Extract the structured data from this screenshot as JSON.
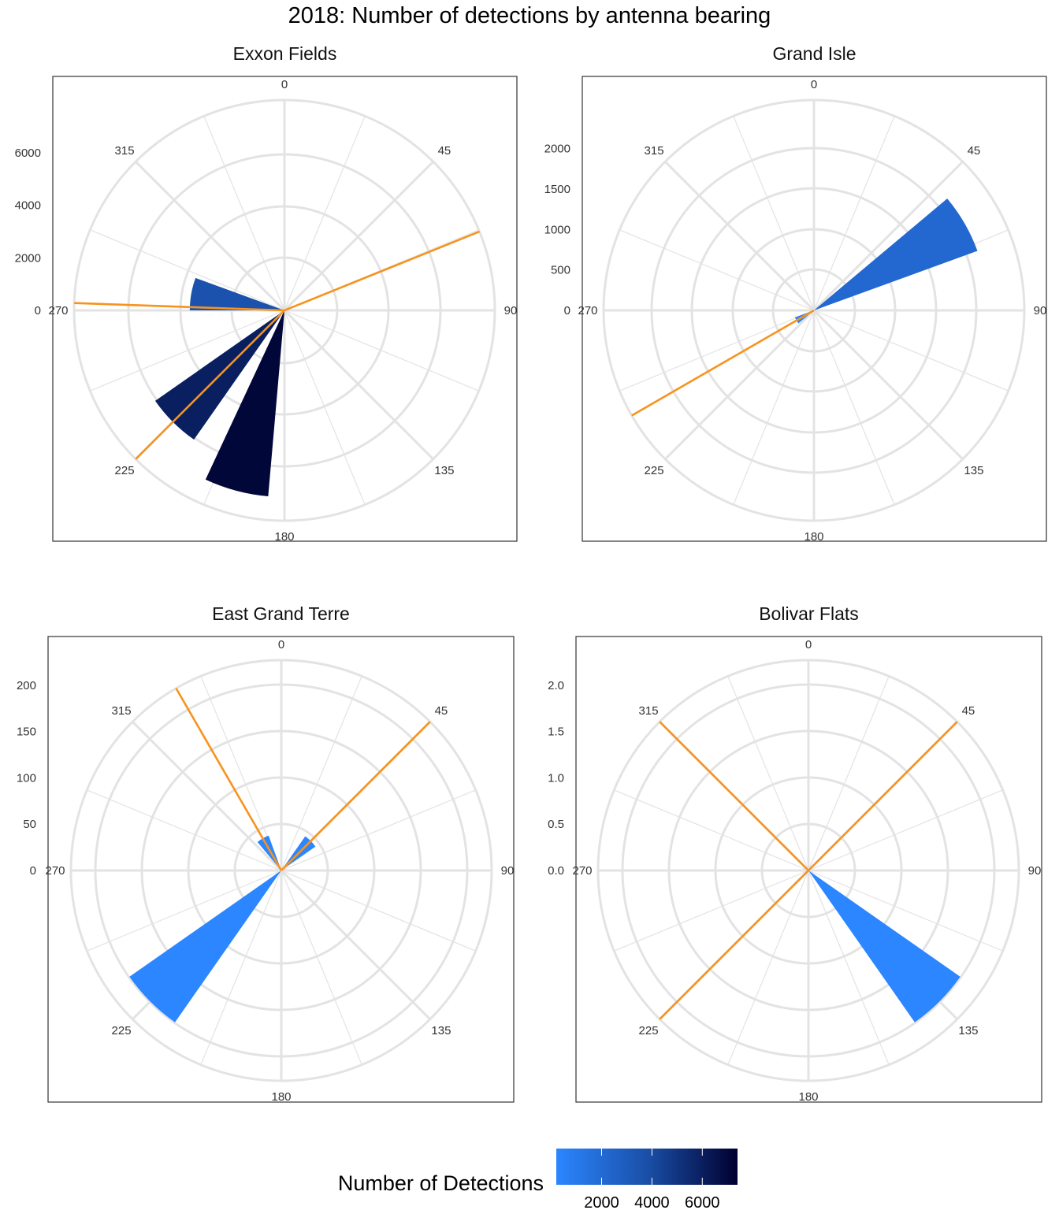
{
  "title": "2018: Number of detections by antenna bearing",
  "colors": {
    "bearing_line": "#f7931e",
    "grid": "#e3e3e3",
    "low": "#2b86ff",
    "mid": "#1a4fa8",
    "high": "#000030"
  },
  "legend": {
    "title": "Number of Detections",
    "min": 200,
    "max": 7400,
    "ticks": [
      "2000",
      "4000",
      "6000"
    ],
    "tick_values": [
      2000,
      4000,
      6000
    ]
  },
  "chart_data": [
    {
      "type": "polar-bar",
      "title": "Exxon Fields",
      "radial_ticks": [
        "0",
        "2000",
        "4000",
        "6000"
      ],
      "radial_tick_values": [
        0,
        2000,
        4000,
        6000
      ],
      "radial_max": 8000,
      "angle_ticks": [
        "0",
        "45",
        "90",
        "135",
        "180",
        "225",
        "270",
        "315"
      ],
      "bars": [
        {
          "bearing": 280,
          "value": 3600
        },
        {
          "bearing": 225,
          "value": 6000
        },
        {
          "bearing": 195,
          "value": 7100
        }
      ],
      "bearing_lines": [
        68,
        272,
        225
      ]
    },
    {
      "type": "polar-bar",
      "title": "Grand Isle",
      "radial_ticks": [
        "0",
        "500",
        "1000",
        "1500",
        "2000"
      ],
      "radial_tick_values": [
        0,
        500,
        1000,
        1500,
        2000
      ],
      "radial_max": 2600,
      "angle_ticks": [
        "0",
        "45",
        "90",
        "135",
        "180",
        "225",
        "270",
        "315"
      ],
      "bars": [
        {
          "bearing": 60,
          "value": 2150
        },
        {
          "bearing": 240,
          "value": 250
        }
      ],
      "bearing_lines": [
        240
      ]
    },
    {
      "type": "polar-bar",
      "title": "East Grand Terre",
      "radial_ticks": [
        "0",
        "50",
        "100",
        "150",
        "200"
      ],
      "radial_tick_values": [
        0,
        50,
        100,
        150,
        200
      ],
      "radial_max": 227,
      "angle_ticks": [
        "0",
        "45",
        "90",
        "135",
        "180",
        "225",
        "270",
        "315"
      ],
      "bars": [
        {
          "bearing": 225,
          "value": 200
        },
        {
          "bearing": 45,
          "value": 45
        },
        {
          "bearing": 330,
          "value": 40
        }
      ],
      "bearing_lines": [
        330,
        45
      ]
    },
    {
      "type": "polar-bar",
      "title": "Bolivar Flats",
      "radial_ticks": [
        "0.0",
        "0.5",
        "1.0",
        "1.5",
        "2.0"
      ],
      "radial_tick_values": [
        0,
        0.5,
        1.0,
        1.5,
        2.0
      ],
      "radial_max": 2.27,
      "angle_ticks": [
        "0",
        "45",
        "90",
        "135",
        "180",
        "225",
        "270",
        "315"
      ],
      "bars": [
        {
          "bearing": 135,
          "value": 2.0
        }
      ],
      "bearing_lines": [
        315,
        45,
        225
      ]
    }
  ]
}
